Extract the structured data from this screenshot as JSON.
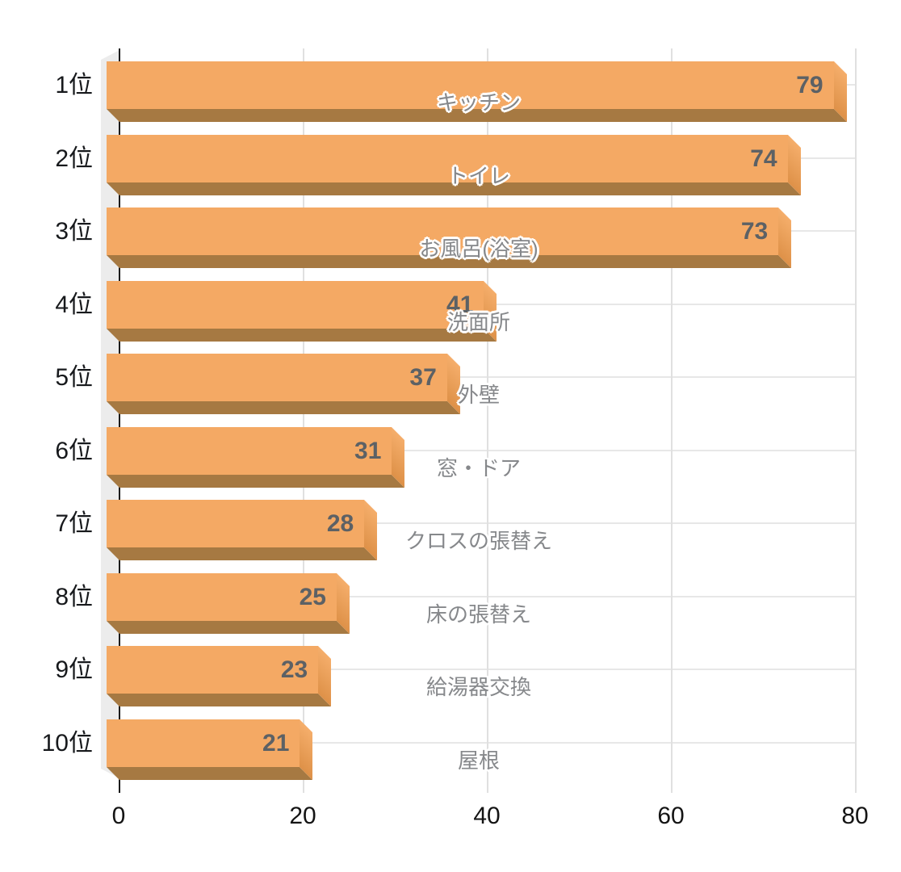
{
  "chart_data": {
    "type": "bar",
    "orientation": "horizontal",
    "title": "",
    "xlabel": "",
    "ylabel": "",
    "legend": "none",
    "grid": true,
    "categories": [
      "キッチン",
      "トイレ",
      "お風呂(浴室)",
      "洗面所",
      "外壁",
      "窓・ドア",
      "クロスの張替え",
      "床の張替え",
      "給湯器交換",
      "屋根"
    ],
    "ranks": [
      "1位",
      "2位",
      "3位",
      "4位",
      "5位",
      "6位",
      "7位",
      "8位",
      "9位",
      "10位"
    ],
    "values": [
      79,
      74,
      73,
      41,
      37,
      31,
      28,
      25,
      23,
      21
    ],
    "rows": [
      {
        "rank": "1位",
        "label": "キッチン",
        "value": 79
      },
      {
        "rank": "2位",
        "label": "トイレ",
        "value": 74
      },
      {
        "rank": "3位",
        "label": "お風呂(浴室)",
        "value": 73
      },
      {
        "rank": "4位",
        "label": "洗面所",
        "value": 41
      },
      {
        "rank": "5位",
        "label": "外壁",
        "value": 37
      },
      {
        "rank": "6位",
        "label": "窓・ドア",
        "value": 31
      },
      {
        "rank": "7位",
        "label": "クロスの張替え",
        "value": 28
      },
      {
        "rank": "8位",
        "label": "床の張替え",
        "value": 25
      },
      {
        "rank": "9位",
        "label": "給湯器交換",
        "value": 23
      },
      {
        "rank": "10位",
        "label": "屋根",
        "value": 21
      }
    ],
    "x_axis": {
      "ticks": [
        "0",
        "20",
        "40",
        "60",
        "80"
      ],
      "min": 0,
      "max": 80
    }
  },
  "colors": {
    "bar_face": "#F4A964",
    "bar_side_light": "#F5AE6B",
    "bar_side_dark": "#DE9148",
    "bar_bottom": "#A67942",
    "value_text": "#5C6165",
    "category_text": "#86888B",
    "rank_text": "#17191C",
    "axis_text": "#141414",
    "gridline": "#E0E0E0",
    "gridline_h": "#E7E7E7",
    "baseline": "#1C1C1C",
    "wall": "#ECECEC",
    "background": "#FFFFFF"
  }
}
